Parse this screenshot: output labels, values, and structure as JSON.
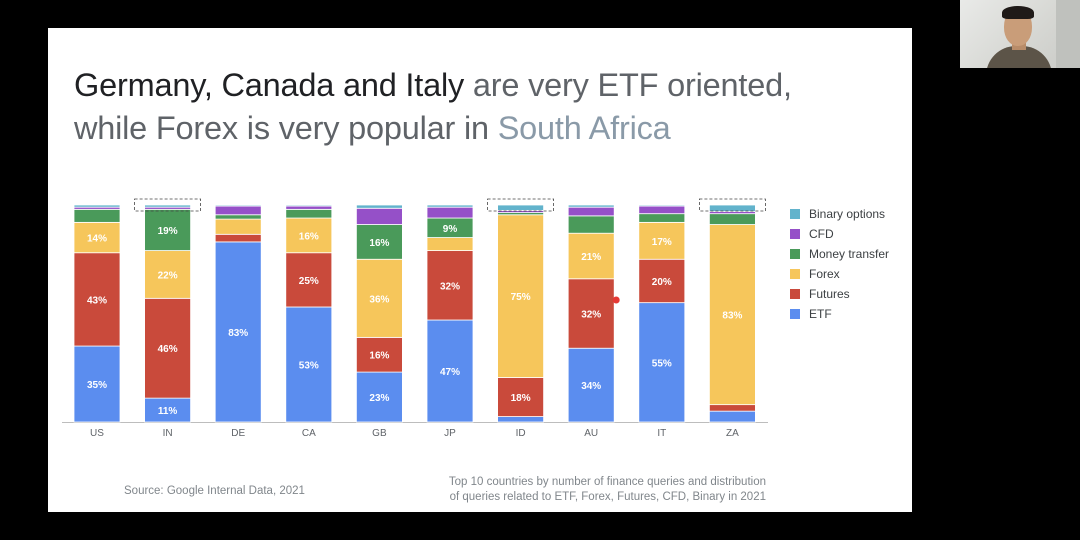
{
  "slide": {
    "title_part1": "Germany, Canada and Italy",
    "title_part2": " are very ETF oriented,",
    "title_part3": "while Forex is very popular in ",
    "title_part4": "South Africa",
    "source": "Source: Google Internal Data, 2021",
    "caption_line1": "Top 10 countries by number of finance queries and distribution",
    "caption_line2": "of queries related to ETF,  Forex, Futures, CFD, Binary in 2021"
  },
  "colors": {
    "ETF": "#5b8def",
    "Futures": "#c94a3b",
    "Forex": "#f6c65b",
    "Money transfer": "#4a9a5a",
    "CFD": "#9550c8",
    "Binary options": "#62b3cc"
  },
  "chart_data": {
    "type": "bar",
    "stacked": true,
    "normalized": true,
    "categories": [
      "US",
      "IN",
      "DE",
      "CA",
      "GB",
      "JP",
      "ID",
      "AU",
      "IT",
      "ZA"
    ],
    "legend": [
      "Binary options",
      "CFD",
      "Money transfer",
      "Forex",
      "Futures",
      "ETF"
    ],
    "series": [
      {
        "name": "ETF",
        "values": [
          35,
          11,
          83,
          53,
          23,
          47,
          2.5,
          34,
          55,
          5
        ]
      },
      {
        "name": "Futures",
        "values": [
          43,
          46,
          3.5,
          25,
          16,
          32,
          18,
          32,
          20,
          3
        ]
      },
      {
        "name": "Forex",
        "values": [
          14,
          22,
          7,
          16,
          36,
          6,
          75,
          21,
          17,
          83
        ]
      },
      {
        "name": "Money transfer",
        "values": [
          6,
          19,
          2,
          4,
          16,
          9,
          1,
          8,
          4,
          5
        ]
      },
      {
        "name": "CFD",
        "values": [
          1,
          1,
          4,
          1.5,
          7.5,
          5,
          1,
          4,
          3.5,
          1
        ]
      },
      {
        "name": "Binary options",
        "values": [
          1,
          1,
          0.5,
          0.5,
          1.5,
          1,
          2.5,
          1,
          0.5,
          3
        ]
      }
    ],
    "labels": {
      "ETF": [
        "35%",
        "11%",
        "83%",
        "53%",
        "23%",
        "47%",
        "",
        "34%",
        "55%",
        ""
      ],
      "Futures": [
        "43%",
        "46%",
        "",
        "25%",
        "16%",
        "32%",
        "18%",
        "32%",
        "20%",
        ""
      ],
      "Forex": [
        "14%",
        "22%",
        "",
        "16%",
        "36%",
        "",
        "75%",
        "21%",
        "17%",
        "83%"
      ],
      "Money transfer": [
        "",
        "19%",
        "",
        "",
        "16%",
        "9%",
        "",
        "",
        "",
        ""
      ],
      "CFD": [
        "",
        "",
        "",
        "",
        "",
        "",
        "",
        "",
        "",
        ""
      ],
      "Binary options": [
        "",
        "",
        "",
        "",
        "",
        "",
        "",
        "",
        "",
        ""
      ]
    },
    "highlighted": [
      "IN",
      "ID",
      "ZA"
    ],
    "ylim": [
      0,
      100
    ]
  }
}
